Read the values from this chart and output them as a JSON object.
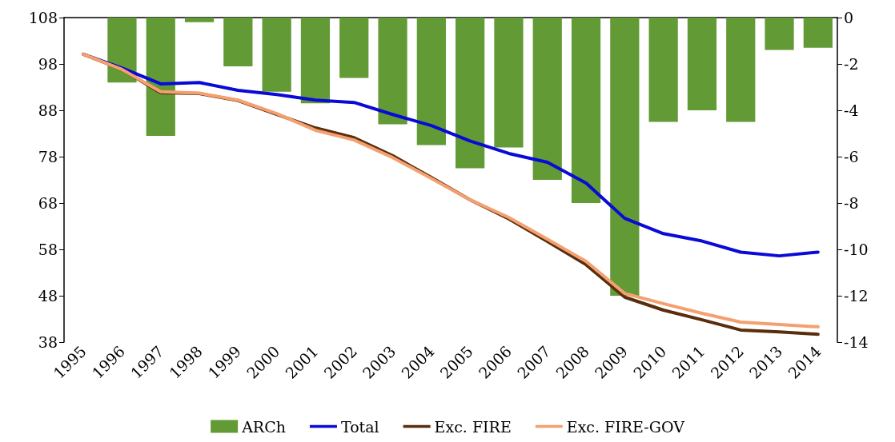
{
  "chart_data": {
    "type": "line",
    "categories": [
      "1995",
      "1996",
      "1997",
      "1998",
      "1999",
      "2000",
      "2001",
      "2002",
      "2003",
      "2004",
      "2005",
      "2006",
      "2007",
      "2008",
      "2009",
      "2010",
      "2011",
      "2012",
      "2013",
      "2014"
    ],
    "series": [
      {
        "name": "ARCh",
        "type": "bar",
        "axis": "y2",
        "color": "#629a35",
        "values": [
          null,
          -2.8,
          -5.1,
          -0.2,
          -2.1,
          -3.2,
          -3.7,
          -2.6,
          -4.6,
          -5.5,
          -6.5,
          -5.6,
          -7.0,
          -8.0,
          -12.0,
          -4.5,
          -4.0,
          -4.5,
          -1.4,
          -1.3
        ]
      },
      {
        "name": "Total",
        "color": "#0a0ad6",
        "values": [
          100.1,
          97.1,
          93.7,
          94.0,
          92.3,
          91.4,
          90.2,
          89.7,
          87.1,
          84.7,
          81.4,
          78.7,
          76.8,
          72.3,
          64.7,
          61.4,
          59.8,
          57.4,
          56.6,
          57.4
        ]
      },
      {
        "name": "Exc. FIRE",
        "color": "#5a2d0c",
        "values": [
          100.1,
          96.8,
          91.8,
          91.6,
          90.1,
          87.1,
          84.2,
          82.1,
          78.2,
          73.5,
          68.7,
          64.6,
          59.7,
          54.7,
          47.7,
          44.9,
          42.8,
          40.6,
          40.2,
          39.7
        ]
      },
      {
        "name": "Exc. FIRE-GOV",
        "color": "#f4a070",
        "values": [
          100.1,
          96.8,
          92.0,
          91.7,
          90.2,
          87.3,
          83.7,
          81.6,
          77.8,
          73.3,
          68.7,
          64.9,
          60.2,
          55.4,
          48.5,
          46.3,
          44.2,
          42.3,
          41.8,
          41.3
        ]
      }
    ],
    "ylim": [
      38,
      108
    ],
    "yticks": [
      38,
      48,
      58,
      68,
      78,
      88,
      98,
      108
    ],
    "y2lim": [
      -14,
      0
    ],
    "y2ticks": [
      -14,
      -12,
      -10,
      -8,
      -6,
      -4,
      -2,
      0
    ],
    "grid": false,
    "legend": "bottom",
    "marker": "none",
    "line_style": "solid"
  }
}
